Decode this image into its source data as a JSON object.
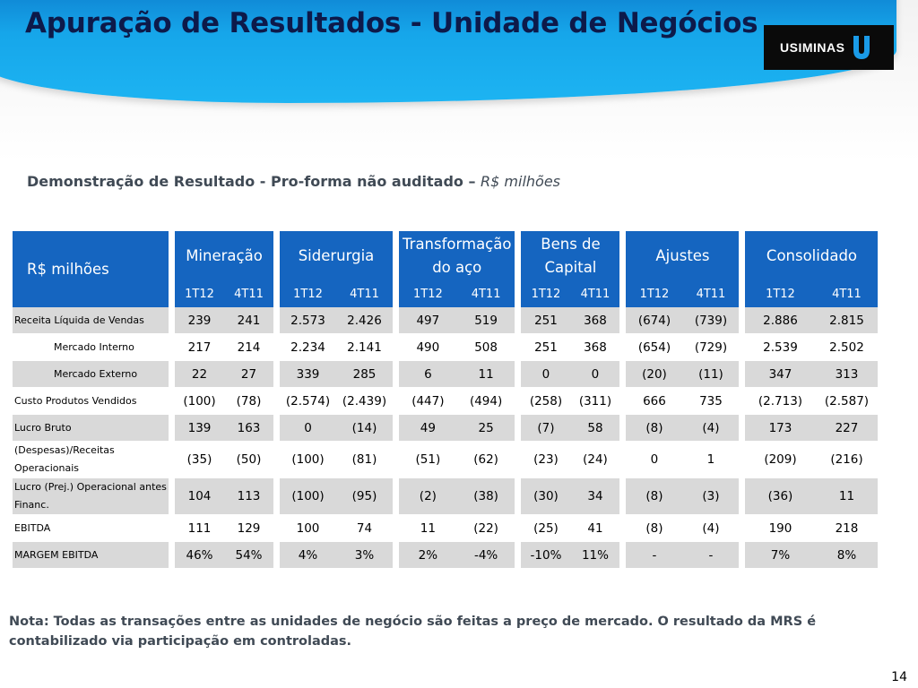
{
  "title": "Apuração de Resultados - Unidade de Negócios",
  "logo": {
    "text": "USIMINAS"
  },
  "subtitle": {
    "main": "Demonstração de Resultado - Pro-forma não auditado – ",
    "italic": "R$ milhões"
  },
  "table": {
    "corner": "R$ milhões",
    "groups": [
      "Mineração",
      "Siderurgia",
      "Transformação do aço",
      "Bens de Capital",
      "Ajustes",
      "Consolidado"
    ],
    "periods": [
      "1T12",
      "4T11"
    ],
    "rows": [
      {
        "label": "Receita Líquida de Vendas",
        "values": [
          "239",
          "241",
          "2.573",
          "2.426",
          "497",
          "519",
          "251",
          "368",
          "(674)",
          "(739)",
          "2.886",
          "2.815"
        ]
      },
      {
        "label": "Mercado Interno",
        "values": [
          "217",
          "214",
          "2.234",
          "2.141",
          "490",
          "508",
          "251",
          "368",
          "(654)",
          "(729)",
          "2.539",
          "2.502"
        ]
      },
      {
        "label": "Mercado Externo",
        "values": [
          "22",
          "27",
          "339",
          "285",
          "6",
          "11",
          "0",
          "0",
          "(20)",
          "(11)",
          "347",
          "313"
        ]
      },
      {
        "label": "Custo Produtos Vendidos",
        "values": [
          "(100)",
          "(78)",
          "(2.574)",
          "(2.439)",
          "(447)",
          "(494)",
          "(258)",
          "(311)",
          "666",
          "735",
          "(2.713)",
          "(2.587)"
        ]
      },
      {
        "label": "Lucro Bruto",
        "values": [
          "139",
          "163",
          "0",
          "(14)",
          "49",
          "25",
          "(7)",
          "58",
          "(8)",
          "(4)",
          "173",
          "227"
        ]
      },
      {
        "label": "(Despesas)/Receitas Operacionais",
        "values": [
          "(35)",
          "(50)",
          "(100)",
          "(81)",
          "(51)",
          "(62)",
          "(23)",
          "(24)",
          "0",
          "1",
          "(209)",
          "(216)"
        ]
      },
      {
        "label": "Lucro (Prej.) Operacional antes Financ.",
        "values": [
          "104",
          "113",
          "(100)",
          "(95)",
          "(2)",
          "(38)",
          "(30)",
          "34",
          "(8)",
          "(3)",
          "(36)",
          "11"
        ]
      },
      {
        "label": "EBITDA",
        "values": [
          "111",
          "129",
          "100",
          "74",
          "11",
          "(22)",
          "(25)",
          "41",
          "(8)",
          "(4)",
          "190",
          "218"
        ]
      },
      {
        "label": "MARGEM EBITDA",
        "values": [
          "46%",
          "54%",
          "4%",
          "3%",
          "2%",
          "-4%",
          "-10%",
          "11%",
          "-",
          "-",
          "7%",
          "8%"
        ]
      }
    ]
  },
  "note": "Nota: Todas as transações entre as unidades de negócio são feitas a preço de mercado. O resultado da MRS  é contabilizado via participação em controladas.",
  "page_number": "14"
}
